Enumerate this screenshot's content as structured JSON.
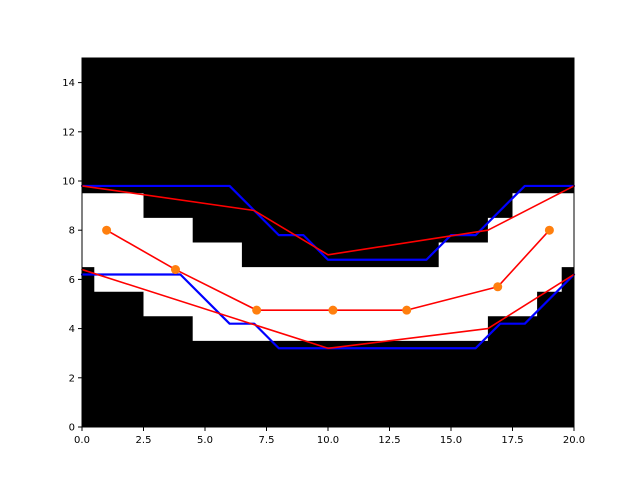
{
  "chart_data": {
    "type": "line",
    "title": "",
    "xlabel": "",
    "ylabel": "",
    "xlim": [
      0,
      20
    ],
    "ylim": [
      0,
      15
    ],
    "grid": false,
    "xticks": [
      0,
      2.5,
      5,
      7.5,
      10,
      12.5,
      15,
      17.5,
      20
    ],
    "xtick_labels": [
      "0.0",
      "2.5",
      "5.0",
      "7.5",
      "10.0",
      "12.5",
      "15.0",
      "17.5",
      "20.0"
    ],
    "yticks": [
      0,
      2,
      4,
      6,
      8,
      10,
      12,
      14
    ],
    "ytick_labels": [
      "0",
      "2",
      "4",
      "6",
      "8",
      "10",
      "12",
      "14"
    ],
    "background_color": "#000000",
    "free_region_color": "#ffffff",
    "free_region": {
      "lower_boundary": [
        [
          0,
          6.5
        ],
        [
          0.5,
          6.5
        ],
        [
          0.5,
          5.5
        ],
        [
          2.5,
          5.5
        ],
        [
          2.5,
          4.5
        ],
        [
          4.5,
          4.5
        ],
        [
          4.5,
          3.5
        ],
        [
          16.5,
          3.5
        ],
        [
          16.5,
          4.5
        ],
        [
          18.5,
          4.5
        ],
        [
          18.5,
          5.5
        ],
        [
          19.5,
          5.5
        ],
        [
          19.5,
          6.5
        ],
        [
          20,
          6.5
        ]
      ],
      "upper_boundary": [
        [
          0,
          9.5
        ],
        [
          2.5,
          9.5
        ],
        [
          2.5,
          8.5
        ],
        [
          4.5,
          8.5
        ],
        [
          4.5,
          7.5
        ],
        [
          6.5,
          7.5
        ],
        [
          6.5,
          6.5
        ],
        [
          14.5,
          6.5
        ],
        [
          14.5,
          7.5
        ],
        [
          16.5,
          7.5
        ],
        [
          16.5,
          8.5
        ],
        [
          17.5,
          8.5
        ],
        [
          17.5,
          9.5
        ],
        [
          20,
          9.5
        ]
      ]
    },
    "series": [
      {
        "color": "#0000ff",
        "values": [
          [
            0,
            9.8
          ],
          [
            6,
            9.8
          ],
          [
            8,
            7.8
          ],
          [
            9,
            7.8
          ],
          [
            10,
            6.8
          ],
          [
            14,
            6.8
          ],
          [
            15,
            7.8
          ],
          [
            16,
            7.8
          ],
          [
            18,
            9.8
          ],
          [
            20,
            9.8
          ]
        ]
      },
      {
        "color": "#0000ff",
        "values": [
          [
            0,
            6.2
          ],
          [
            4,
            6.2
          ],
          [
            6,
            4.2
          ],
          [
            7,
            4.2
          ],
          [
            8,
            3.2
          ],
          [
            16,
            3.2
          ],
          [
            17,
            4.2
          ],
          [
            18,
            4.2
          ],
          [
            20,
            6.2
          ]
        ]
      },
      {
        "color": "#ff0000",
        "values": [
          [
            0,
            9.8
          ],
          [
            7,
            8.8
          ],
          [
            10,
            7.0
          ],
          [
            16.5,
            8.0
          ],
          [
            20,
            9.8
          ]
        ]
      },
      {
        "color": "#ff0000",
        "values": [
          [
            0,
            6.4
          ],
          [
            10,
            3.2
          ],
          [
            16.5,
            4.0
          ],
          [
            20,
            6.2
          ]
        ]
      },
      {
        "color": "#ff0000",
        "values": [
          [
            1,
            8
          ],
          [
            3.8,
            6.4
          ],
          [
            7.1,
            4.75
          ],
          [
            10.2,
            4.75
          ],
          [
            13.2,
            4.75
          ],
          [
            16.9,
            5.7
          ],
          [
            19,
            8
          ]
        ]
      }
    ],
    "points": {
      "color": "#ff7f0e",
      "values": [
        [
          1,
          8
        ],
        [
          3.8,
          6.4
        ],
        [
          7.1,
          4.75
        ],
        [
          10.2,
          4.75
        ],
        [
          13.2,
          4.75
        ],
        [
          16.9,
          5.7
        ],
        [
          19,
          8
        ]
      ]
    }
  }
}
